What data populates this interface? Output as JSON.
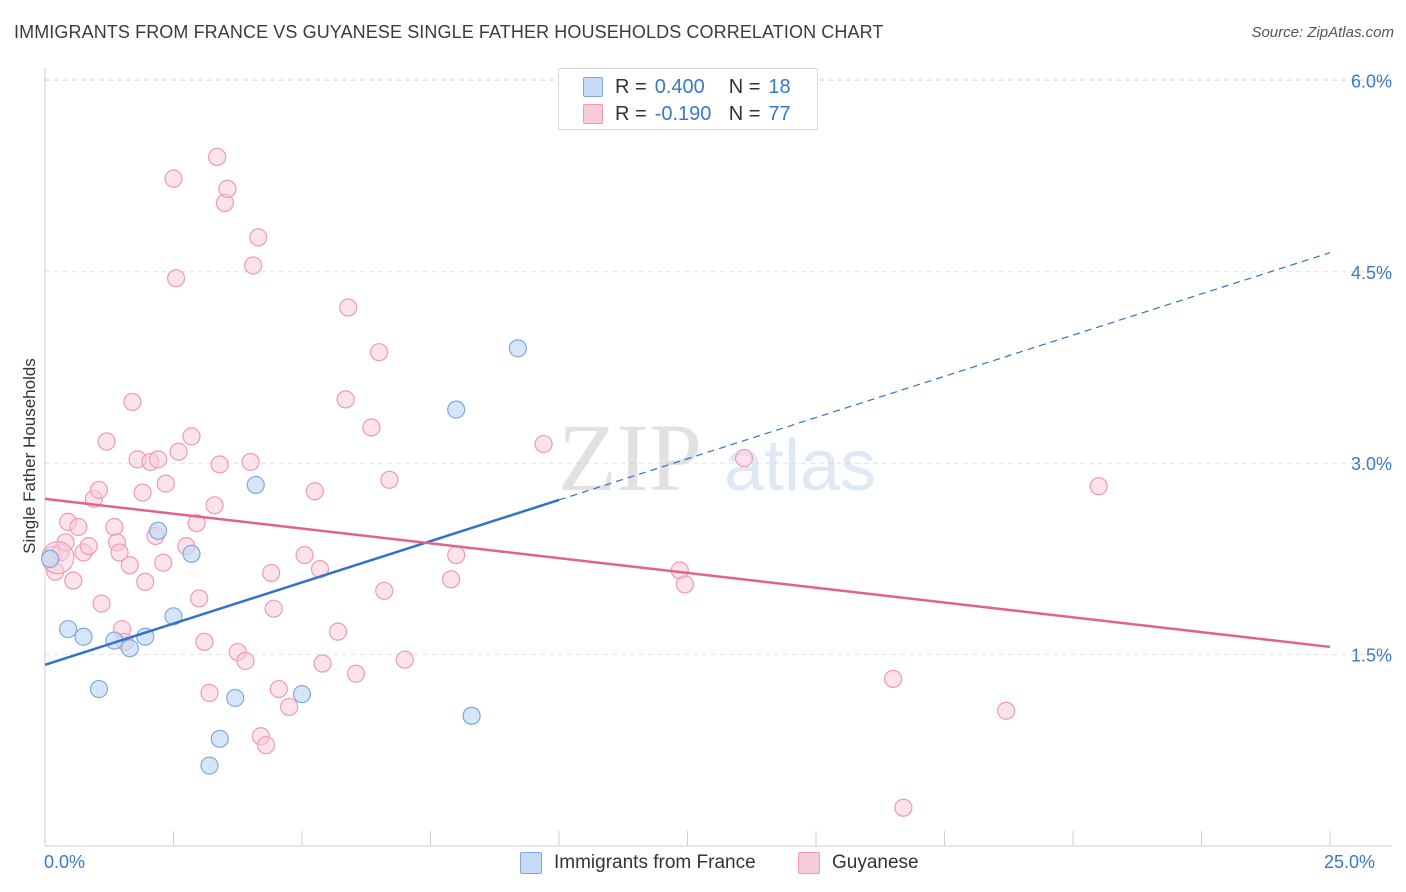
{
  "title": "IMMIGRANTS FROM FRANCE VS GUYANESE SINGLE FATHER HOUSEHOLDS CORRELATION CHART",
  "source": "Source: ZipAtlas.com",
  "watermark": {
    "zip": "ZIP",
    "atlas": "atlas"
  },
  "legend_top": [
    {
      "r_label": "R =",
      "r_value": "0.400",
      "n_label": "N =",
      "n_value": "18"
    },
    {
      "r_label": "R =",
      "r_value": "-0.190",
      "n_label": "N =",
      "n_value": "77"
    }
  ],
  "legend_bottom": [
    "Immigrants from France",
    "Guyanese"
  ],
  "colors": {
    "blue_fill": "#c5daf4",
    "blue_stroke": "#7ea9e0",
    "blue_line": "#3372c9",
    "pink_fill": "#f9ccda",
    "pink_stroke": "#ee9ab4",
    "pink_line": "#e2628f",
    "tick_text": "#3a78c9",
    "grid": "#e3e3e3"
  },
  "chart_data": {
    "type": "scatter",
    "title": "IMMIGRANTS FROM FRANCE VS GUYANESE SINGLE FATHER HOUSEHOLDS CORRELATION CHART",
    "xlabel": "",
    "ylabel": "Single Father Households",
    "xlim": [
      0,
      25
    ],
    "ylim": [
      0,
      6.3
    ],
    "x_tick_labels": [
      "0.0%",
      "25.0%"
    ],
    "y_ticks": [
      1.5,
      3.0,
      4.5,
      6.0
    ],
    "y_tick_labels": [
      "1.5%",
      "3.0%",
      "4.5%",
      "6.0%"
    ],
    "grid": true,
    "series": [
      {
        "name": "Immigrants from France",
        "R": 0.4,
        "N": 18,
        "points": [
          [
            0.1,
            2.25
          ],
          [
            0.45,
            1.7
          ],
          [
            0.75,
            1.64
          ],
          [
            1.05,
            1.23
          ],
          [
            1.35,
            1.61
          ],
          [
            1.65,
            1.55
          ],
          [
            1.95,
            1.64
          ],
          [
            2.2,
            2.47
          ],
          [
            2.5,
            1.8
          ],
          [
            2.85,
            2.29
          ],
          [
            3.2,
            0.63
          ],
          [
            3.4,
            0.84
          ],
          [
            3.7,
            1.16
          ],
          [
            4.1,
            2.83
          ],
          [
            5.0,
            1.19
          ],
          [
            8.0,
            3.42
          ],
          [
            8.3,
            1.02
          ],
          [
            9.2,
            3.9
          ]
        ],
        "trend": {
          "x_start": 0,
          "y_start": 1.42,
          "x_end": 25,
          "y_end": 4.65,
          "solid_until_x": 10
        }
      },
      {
        "name": "Guyanese",
        "R": -0.19,
        "N": 77,
        "points": [
          [
            0.15,
            2.28
          ],
          [
            0.2,
            2.15
          ],
          [
            0.3,
            2.3
          ],
          [
            0.4,
            2.38
          ],
          [
            0.45,
            2.54
          ],
          [
            0.55,
            2.08
          ],
          [
            0.65,
            2.5
          ],
          [
            0.75,
            2.3
          ],
          [
            0.85,
            2.35
          ],
          [
            0.95,
            2.72
          ],
          [
            1.05,
            2.79
          ],
          [
            1.1,
            1.9
          ],
          [
            1.2,
            3.17
          ],
          [
            1.35,
            2.5
          ],
          [
            1.4,
            2.38
          ],
          [
            1.45,
            2.3
          ],
          [
            1.5,
            1.7
          ],
          [
            1.55,
            1.6
          ],
          [
            1.65,
            2.2
          ],
          [
            1.7,
            3.48
          ],
          [
            1.8,
            3.03
          ],
          [
            1.9,
            2.77
          ],
          [
            1.95,
            2.07
          ],
          [
            2.05,
            3.01
          ],
          [
            2.15,
            2.43
          ],
          [
            2.2,
            3.03
          ],
          [
            2.3,
            2.22
          ],
          [
            2.35,
            2.84
          ],
          [
            2.5,
            5.23
          ],
          [
            2.55,
            4.45
          ],
          [
            2.6,
            3.09
          ],
          [
            2.75,
            2.35
          ],
          [
            2.85,
            3.21
          ],
          [
            2.95,
            2.53
          ],
          [
            3.0,
            1.94
          ],
          [
            3.1,
            1.6
          ],
          [
            3.2,
            1.2
          ],
          [
            3.3,
            2.67
          ],
          [
            3.35,
            5.4
          ],
          [
            3.4,
            2.99
          ],
          [
            3.5,
            5.04
          ],
          [
            3.55,
            5.15
          ],
          [
            3.75,
            1.52
          ],
          [
            3.9,
            1.45
          ],
          [
            4.0,
            3.01
          ],
          [
            4.05,
            4.55
          ],
          [
            4.15,
            4.77
          ],
          [
            4.2,
            0.86
          ],
          [
            4.3,
            0.79
          ],
          [
            4.4,
            2.14
          ],
          [
            4.45,
            1.86
          ],
          [
            4.55,
            1.23
          ],
          [
            4.75,
            1.09
          ],
          [
            5.05,
            2.28
          ],
          [
            5.25,
            2.78
          ],
          [
            5.35,
            2.17
          ],
          [
            5.4,
            1.43
          ],
          [
            5.7,
            1.68
          ],
          [
            5.85,
            3.5
          ],
          [
            5.9,
            4.22
          ],
          [
            6.05,
            1.35
          ],
          [
            6.35,
            3.28
          ],
          [
            6.5,
            3.87
          ],
          [
            6.6,
            2.0
          ],
          [
            6.7,
            2.87
          ],
          [
            7.0,
            1.46
          ],
          [
            7.9,
            2.09
          ],
          [
            8.0,
            2.28
          ],
          [
            9.7,
            3.15
          ],
          [
            12.35,
            2.16
          ],
          [
            12.45,
            2.05
          ],
          [
            13.6,
            3.04
          ],
          [
            16.5,
            1.31
          ],
          [
            16.7,
            0.3
          ],
          [
            18.7,
            1.06
          ],
          [
            20.5,
            2.82
          ],
          [
            0.25,
            2.26
          ]
        ],
        "trend": {
          "x_start": 0,
          "y_start": 2.72,
          "x_end": 25,
          "y_end": 1.56
        }
      }
    ]
  }
}
